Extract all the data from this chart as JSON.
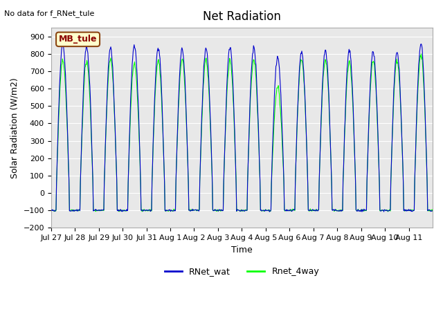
{
  "title": "Net Radiation",
  "subtitle": "No data for f_RNet_tule",
  "xlabel": "Time",
  "ylabel": "Solar Radiation (W/m2)",
  "ylim": [
    -200,
    950
  ],
  "yticks": [
    -200,
    -100,
    0,
    100,
    200,
    300,
    400,
    500,
    600,
    700,
    800,
    900
  ],
  "color_blue": "#0000CC",
  "color_green": "#00FF00",
  "legend_labels": [
    "RNet_wat",
    "Rnet_4way"
  ],
  "annotation_box": "MB_tule",
  "annotation_box_facecolor": "#FFFFCC",
  "annotation_box_edgecolor": "#8B4513",
  "annotation_text_color": "#8B0000",
  "num_days": 16,
  "plot_bg_color": "#E8E8E8",
  "day_labels": [
    "Jul 27",
    "Jul 28",
    "Jul 29",
    "Jul 30",
    "Jul 31",
    "Aug 1",
    "Aug 2",
    "Aug 3",
    "Aug 4",
    "Aug 5",
    "Aug 6",
    "Aug 7",
    "Aug 8",
    "Aug 9",
    "Aug 10",
    "Aug 11"
  ],
  "peak_vals_blue": [
    855,
    840,
    830,
    850,
    840,
    825,
    830,
    830,
    835,
    780,
    810,
    820,
    820,
    815,
    810,
    855
  ],
  "peak_vals_green": [
    760,
    755,
    770,
    750,
    760,
    765,
    765,
    760,
    765,
    610,
    770,
    765,
    755,
    760,
    760,
    790
  ]
}
